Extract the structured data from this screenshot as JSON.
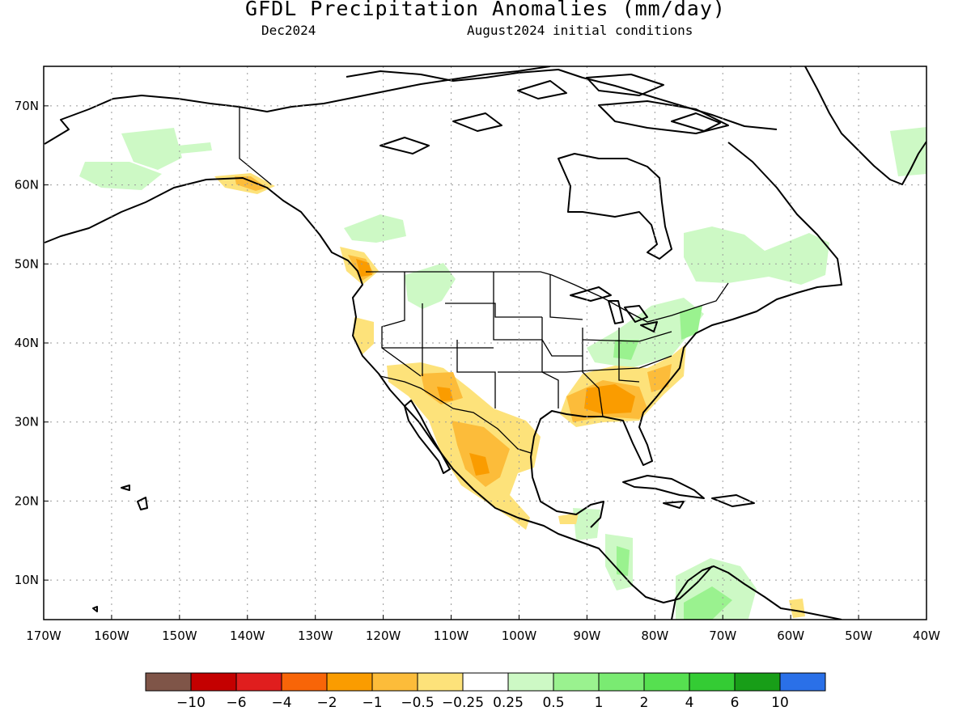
{
  "title": "GFDL Precipitation Anomalies (mm/day)",
  "subtitle_left": "Dec2024",
  "subtitle_right": "August2024 initial conditions",
  "map": {
    "lon_range": [
      -170,
      -40
    ],
    "lat_range": [
      5,
      75
    ],
    "lat_ticks": [
      {
        "value": 70,
        "label": "70N"
      },
      {
        "value": 60,
        "label": "60N"
      },
      {
        "value": 50,
        "label": "50N"
      },
      {
        "value": 40,
        "label": "40N"
      },
      {
        "value": 30,
        "label": "30N"
      },
      {
        "value": 20,
        "label": "20N"
      },
      {
        "value": 10,
        "label": "10N"
      }
    ],
    "lon_ticks": [
      {
        "value": -170,
        "label": "170W"
      },
      {
        "value": -160,
        "label": "160W"
      },
      {
        "value": -150,
        "label": "150W"
      },
      {
        "value": -140,
        "label": "140W"
      },
      {
        "value": -130,
        "label": "130W"
      },
      {
        "value": -120,
        "label": "120W"
      },
      {
        "value": -110,
        "label": "110W"
      },
      {
        "value": -100,
        "label": "100W"
      },
      {
        "value": -90,
        "label": "90W"
      },
      {
        "value": -80,
        "label": "80W"
      },
      {
        "value": -70,
        "label": "70W"
      },
      {
        "value": -60,
        "label": "60W"
      },
      {
        "value": -50,
        "label": "50W"
      },
      {
        "value": -40,
        "label": "40W"
      }
    ],
    "grid": "dotted"
  },
  "colorbar": {
    "colors": [
      "#7f5548",
      "#c40000",
      "#e01e1e",
      "#f86508",
      "#fa9c00",
      "#fcbc3a",
      "#fde27a",
      "#ffffff",
      "#cdf9c5",
      "#9af28f",
      "#7aeb72",
      "#56e050",
      "#34cc34",
      "#189e18",
      "#2a70e8"
    ],
    "labels": [
      "−10",
      "−6",
      "−4",
      "−2",
      "−1",
      "−0.5",
      "−0.25",
      "0.25",
      "0.5",
      "1",
      "2",
      "4",
      "6",
      "10"
    ]
  }
}
